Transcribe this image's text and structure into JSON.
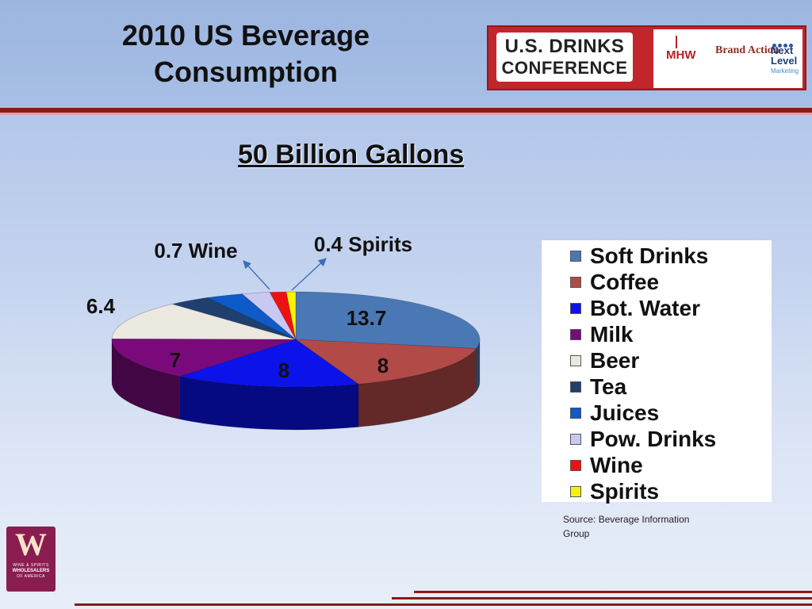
{
  "header": {
    "title_line1": "2010 US Beverage",
    "title_line2": "Consumption"
  },
  "logo": {
    "line1": "U.S. DRINKS",
    "line2": "CONFERENCE",
    "sponsors": [
      "MHW",
      "Brand Action",
      "Next Level",
      "Marketing"
    ]
  },
  "subtitle": "50  Billion Gallons",
  "chart_data": {
    "type": "pie",
    "title": "50  Billion Gallons",
    "labels": [
      "Soft Drinks",
      "Coffee",
      "Bot. Water",
      "Milk",
      "Beer",
      "Tea",
      "Juices",
      "Pow. Drinks",
      "Wine",
      "Spirits"
    ],
    "values": [
      13.7,
      8,
      8,
      7,
      6.4,
      1.8,
      1.6,
      1.2,
      0.7,
      0.4
    ],
    "colors": [
      "#4a78b5",
      "#b24a48",
      "#0b12ea",
      "#7a0a7c",
      "#ebe8df",
      "#1f3f6e",
      "#0d5ac8",
      "#c8c8f2",
      "#ee1111",
      "#f7f20a"
    ],
    "data_labels": [
      {
        "series": "Soft Drinks",
        "text": "13.7"
      },
      {
        "series": "Coffee",
        "text": "8"
      },
      {
        "series": "Bot. Water",
        "text": "8"
      },
      {
        "series": "Milk",
        "text": "7"
      },
      {
        "series": "Beer",
        "text": "6.4"
      },
      {
        "series": "Wine",
        "text": "0.7 Wine"
      },
      {
        "series": "Spirits",
        "text": "0.4 Spirits"
      }
    ],
    "legend_position": "right",
    "style": "3d"
  },
  "source": "Source: Beverage Information Group",
  "wswa_logo": {
    "letter": "W",
    "line1": "WINE & SPIRITS",
    "line2": "WHOLESALERS",
    "line3": "OF AMERICA"
  },
  "colors": {
    "accent_red": "#8b1a1a",
    "logo_red": "#c0262c",
    "background": "#c4d3ef"
  }
}
